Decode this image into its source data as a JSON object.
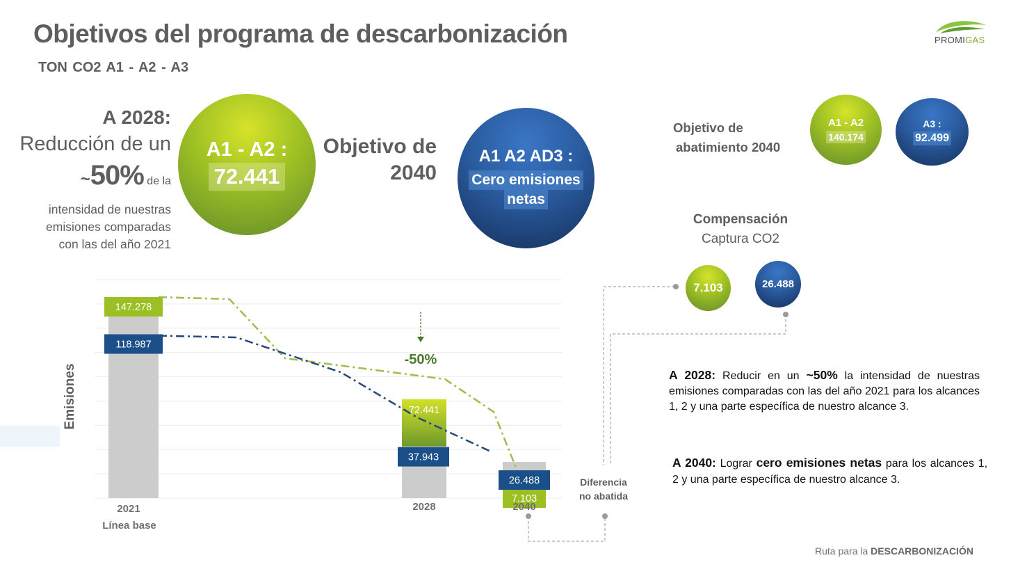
{
  "header": {
    "title": "Objetivos del programa de descarbonización",
    "subtitle": "TON CO2    A1 -  A2 - A3",
    "logo_text_a": "PROMI",
    "logo_text_b": "GAS"
  },
  "left_block": {
    "heading": "A 2028:",
    "line1": "Reducción de un",
    "tilde": "~",
    "percent": "50%",
    "de_la": "de la",
    "line3": "intensidad de nuestras",
    "line4": "emisiones comparadas",
    "line5": "con las del año 2021"
  },
  "circle_2028": {
    "label": "A1 -  A2 :",
    "value": "72.441"
  },
  "objective_2040": {
    "line1": "Objetivo de",
    "line2": "2040"
  },
  "circle_2040": {
    "label": "A1 A2 AD3 :",
    "value_line1": "Cero emisiones",
    "value_line2": "netas"
  },
  "abatement": {
    "line1": "Objetivo de",
    "line2": "abatimiento 2040",
    "a1a2_label": "A1 -  A2",
    "a1a2_value": "140.174",
    "a3_label": "A3 :",
    "a3_value": "92.499"
  },
  "compensation": {
    "line1": "Compensación",
    "line2": "Captura CO2",
    "green_value": "7.103",
    "blue_value": "26.488"
  },
  "text_2028": {
    "lead": "A 2028:",
    "part1": " Reducir en un ",
    "bold": "~50%",
    "part2": " la intensidad de nuestras emisiones comparadas con las del año 2021 para los alcances 1, 2 y una parte específica de nuestro alcance 3."
  },
  "text_2040": {
    "lead": "A 2040:",
    "part1": " Lograr ",
    "bold": "cero emisiones netas",
    "part2": " para los alcances 1, 2 y una parte específica de nuestro alcance 3."
  },
  "footer": {
    "prefix": "Ruta para la ",
    "bold": "DESCARBONIZACIÓN"
  },
  "chart_data": {
    "type": "bar",
    "ylabel": "Emisiones",
    "categories": [
      "2021",
      "2028",
      "2040"
    ],
    "category_sublabels": [
      "Línea base",
      "",
      ""
    ],
    "ylim": [
      0,
      160000
    ],
    "grid": true,
    "series": [
      {
        "values": [
          147278,
          72441,
          7103
        ],
        "labels": [
          "147.278",
          "72.441",
          "7.103"
        ],
        "color": "#9cbf24"
      },
      {
        "values": [
          118987,
          37943,
          26488
        ],
        "labels": [
          "118.987",
          "37.943",
          "26.488"
        ],
        "color": "#1b4f8a"
      }
    ],
    "total_bar_color": "#cccccc",
    "annotation": "-50%",
    "extra_label_line1": "Diferencia",
    "extra_label_line2": "no abatida",
    "trend_colors": [
      "#9cbf4a",
      "#24497a"
    ]
  }
}
